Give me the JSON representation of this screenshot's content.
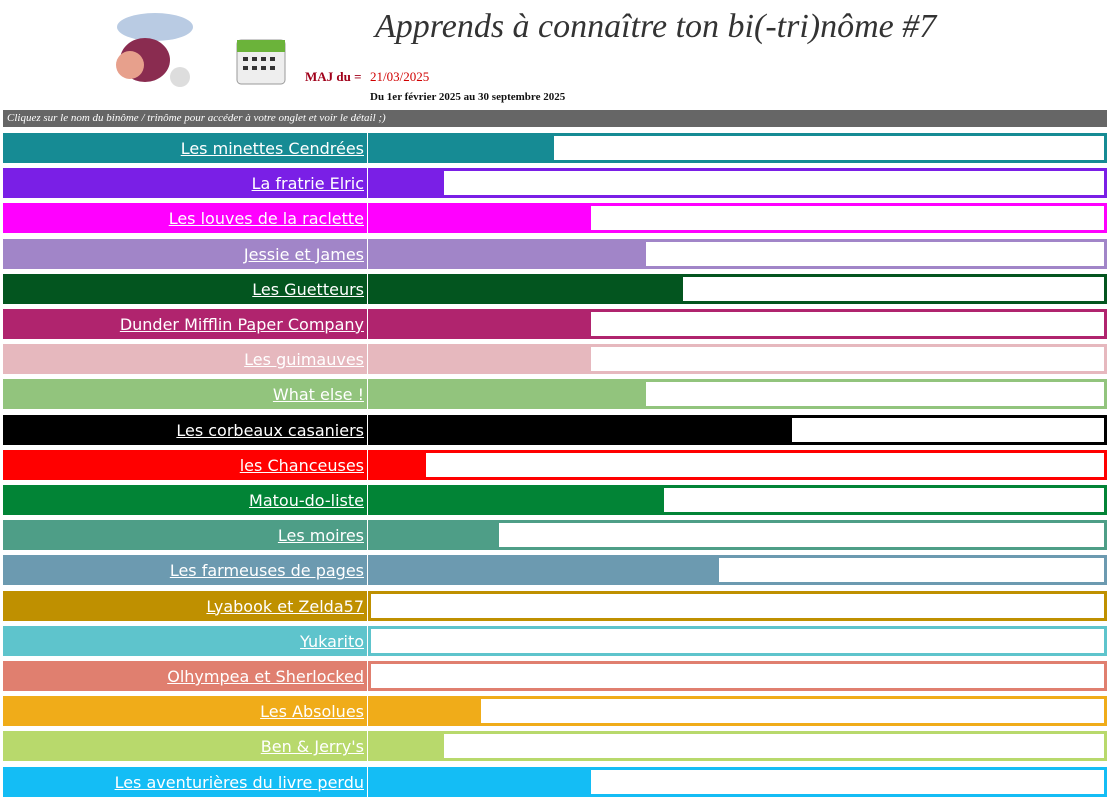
{
  "header": {
    "title": "Apprends à connaître ton bi(-tri)nôme #7",
    "update_label": "MAJ du =",
    "update_date": "21/03/2025",
    "period": "Du 1er février 2025 au 30 septembre 2025",
    "instruction": "Cliquez sur le nom du binôme / trinôme pour accéder à votre onglet et voir le détail ;)"
  },
  "progress": {
    "xlim": [
      0,
      100
    ],
    "rows": [
      {
        "name": "Les minettes Cendrées",
        "color": "#168b94",
        "value": 25
      },
      {
        "name": "La fratrie Elric",
        "color": "#7a1fe6",
        "value": 10
      },
      {
        "name": "Les louves de la raclette",
        "color": "#ff00ff",
        "value": 30
      },
      {
        "name": "Jessie et James",
        "color": "#a185c8",
        "value": 37.5
      },
      {
        "name": "Les Guetteurs",
        "color": "#03551f",
        "value": 42.5
      },
      {
        "name": "Dunder Mifflin Paper Company",
        "color": "#b0246e",
        "value": 30
      },
      {
        "name": "Les guimauves",
        "color": "#e6b8be",
        "value": 30
      },
      {
        "name": "What else !",
        "color": "#92c47d",
        "value": 37.5
      },
      {
        "name": "Les corbeaux casaniers",
        "color": "#000000",
        "value": 57.5
      },
      {
        "name": "les Chanceuses",
        "color": "#ff0000",
        "value": 7.5
      },
      {
        "name": "Matou-do-liste",
        "color": "#028436",
        "value": 40
      },
      {
        "name": "Les moires",
        "color": "#4e9e87",
        "value": 17.5
      },
      {
        "name": "Les farmeuses de pages",
        "color": "#6c9ab0",
        "value": 47.5
      },
      {
        "name": "Lyabook et Zelda57",
        "color": "#bf9000",
        "value": 0
      },
      {
        "name": "Yukarito",
        "color": "#5ec4cc",
        "value": 0
      },
      {
        "name": "Olhympea et Sherlocked",
        "color": "#e07f6f",
        "value": 0
      },
      {
        "name": "Les Absolues",
        "color": "#f0ac19",
        "value": 15
      },
      {
        "name": "Ben & Jerry's",
        "color": "#b8d96c",
        "value": 10
      },
      {
        "name": "Les aventurières du livre perdu",
        "color": "#14bdf5",
        "value": 30
      }
    ]
  }
}
